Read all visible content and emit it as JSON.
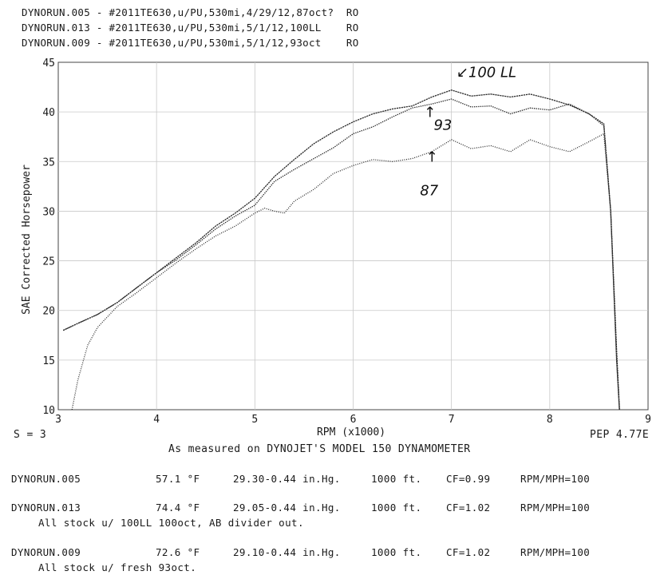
{
  "header_runs": [
    "DYNORUN.005 - #2011TE630,u/PU,530mi,4/29/12,87oct?  RO",
    "DYNORUN.013 - #2011TE630,u/PU,530mi,5/1/12,100LL    RO",
    "DYNORUN.009 - #2011TE630,u/PU,530mi,5/1/12,93oct    RO"
  ],
  "chart_data": {
    "type": "line",
    "title": "",
    "xlabel": "RPM (x1000)",
    "ylabel": "SAE Corrected Horsepower",
    "xlim": [
      3,
      9
    ],
    "ylim": [
      10,
      45
    ],
    "x_ticks": [
      3,
      4,
      5,
      6,
      7,
      8,
      9
    ],
    "y_ticks": [
      10,
      15,
      20,
      25,
      30,
      35,
      40,
      45
    ],
    "grid": true,
    "series": [
      {
        "name": "100 LL",
        "x": [
          3.05,
          3.2,
          3.4,
          3.6,
          3.8,
          4.0,
          4.2,
          4.4,
          4.6,
          4.8,
          5.0,
          5.2,
          5.4,
          5.6,
          5.8,
          6.0,
          6.2,
          6.4,
          6.6,
          6.8,
          7.0,
          7.2,
          7.4,
          7.6,
          7.8,
          8.0,
          8.2,
          8.4,
          8.55,
          8.62,
          8.68,
          8.72
        ],
        "y": [
          18.0,
          18.7,
          19.6,
          20.8,
          22.3,
          23.8,
          25.3,
          26.8,
          28.5,
          29.8,
          31.3,
          33.5,
          35.2,
          36.8,
          38.0,
          39.0,
          39.8,
          40.3,
          40.6,
          41.5,
          42.2,
          41.6,
          41.8,
          41.5,
          41.8,
          41.3,
          40.7,
          39.8,
          38.8,
          30.0,
          16.0,
          8.0
        ]
      },
      {
        "name": "93",
        "x": [
          3.05,
          3.2,
          3.4,
          3.6,
          3.8,
          4.0,
          4.2,
          4.4,
          4.6,
          4.8,
          5.0,
          5.2,
          5.4,
          5.6,
          5.8,
          6.0,
          6.2,
          6.4,
          6.6,
          6.8,
          7.0,
          7.2,
          7.4,
          7.6,
          7.8,
          8.0,
          8.2,
          8.4,
          8.55,
          8.62,
          8.68,
          8.72
        ],
        "y": [
          18.0,
          18.7,
          19.6,
          20.8,
          22.3,
          23.8,
          25.1,
          26.6,
          28.2,
          29.5,
          30.6,
          33.0,
          34.2,
          35.3,
          36.4,
          37.8,
          38.5,
          39.5,
          40.4,
          40.8,
          41.3,
          40.5,
          40.6,
          39.8,
          40.4,
          40.2,
          40.8,
          39.8,
          38.6,
          30.0,
          15.0,
          8.0
        ]
      },
      {
        "name": "87",
        "x": [
          3.14,
          3.2,
          3.3,
          3.4,
          3.6,
          3.8,
          4.0,
          4.2,
          4.4,
          4.6,
          4.8,
          5.0,
          5.1,
          5.2,
          5.3,
          5.4,
          5.6,
          5.8,
          6.0,
          6.2,
          6.4,
          6.6,
          6.8,
          7.0,
          7.2,
          7.4,
          7.6,
          7.8,
          8.0,
          8.2,
          8.4,
          8.55,
          8.62,
          8.68,
          8.72
        ],
        "y": [
          10.0,
          13.0,
          16.5,
          18.3,
          20.4,
          21.8,
          23.3,
          24.8,
          26.2,
          27.5,
          28.5,
          29.8,
          30.3,
          30.0,
          29.8,
          31.0,
          32.2,
          33.8,
          34.6,
          35.2,
          35.0,
          35.3,
          36.0,
          37.2,
          36.3,
          36.6,
          36.0,
          37.2,
          36.5,
          36.0,
          37.0,
          37.8,
          30.0,
          15.0,
          8.0
        ]
      }
    ],
    "annotations": [
      {
        "text": "↙100 LL",
        "x": 7.05,
        "y": 43.5
      },
      {
        "text": "↑",
        "x": 6.72,
        "y": 39.5
      },
      {
        "text": "93",
        "x": 6.82,
        "y": 38.2
      },
      {
        "text": "↑",
        "x": 6.74,
        "y": 35.0
      },
      {
        "text": "87",
        "x": 6.68,
        "y": 31.6
      }
    ],
    "left_text": "S = 3",
    "right_text": "PEP 4.77E"
  },
  "caption": "As measured on DYNOJET'S MODEL 150 DYNAMOMETER",
  "runs": [
    {
      "id": "DYNORUN.005",
      "temp": "57.1 °F",
      "baro": "29.30-0.44 in.Hg.",
      "alt": "1000 ft.",
      "cf": "CF=0.99",
      "ratio": "RPM/MPH=100",
      "note": ""
    },
    {
      "id": "DYNORUN.013",
      "temp": "74.4 °F",
      "baro": "29.05-0.44 in.Hg.",
      "alt": "1000 ft.",
      "cf": "CF=1.02",
      "ratio": "RPM/MPH=100",
      "note": "All stock u/ 100LL 100oct, AB divider out."
    },
    {
      "id": "DYNORUN.009",
      "temp": "72.6 °F",
      "baro": "29.10-0.44 in.Hg.",
      "alt": "1000 ft.",
      "cf": "CF=1.02",
      "ratio": "RPM/MPH=100",
      "note": "All stock u/ fresh 93oct."
    }
  ]
}
